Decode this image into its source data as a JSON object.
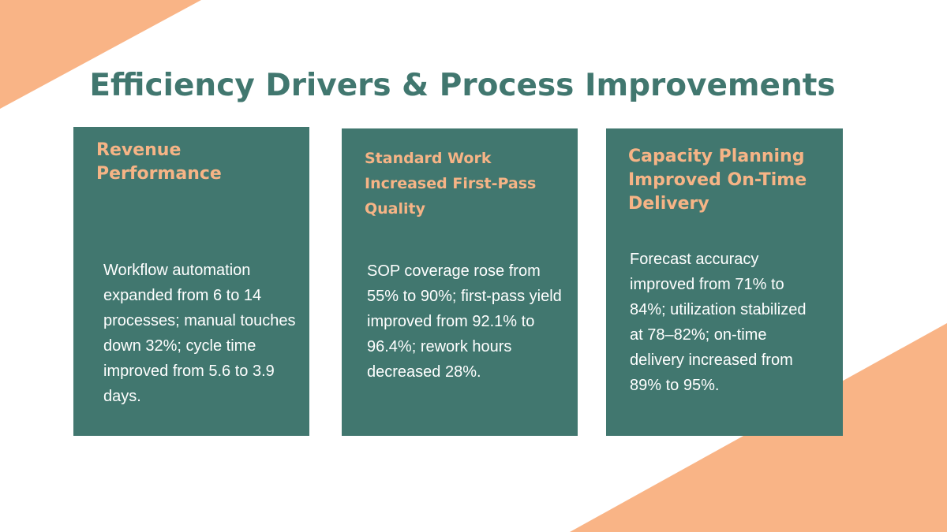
{
  "title": "Efficiency Drivers & Process Improvements",
  "colors": {
    "background": "#ffffff",
    "accent_shape": "#f9b486",
    "card_fill": "#41776f",
    "title_text": "#41776f",
    "card_heading_text": "#f6b486",
    "card_body_text": "#ffffff"
  },
  "cards": [
    {
      "heading": "Revenue Performance",
      "body": "Workflow automation expanded from 6 to 14 processes; manual touches down 32%; cycle time improved from 5.6 to 3.9 days."
    },
    {
      "heading": "Standard Work Increased First-Pass Quality",
      "body": "SOP coverage rose from 55% to 90%; first-pass yield improved from 92.1% to 96.4%; rework hours decreased 28%."
    },
    {
      "heading": "Capacity Planning Improved On-Time Delivery",
      "body": "Forecast accuracy improved from 71% to 84%; utilization stabilized at 78–82%; on-time delivery increased from 89% to 95%."
    }
  ]
}
